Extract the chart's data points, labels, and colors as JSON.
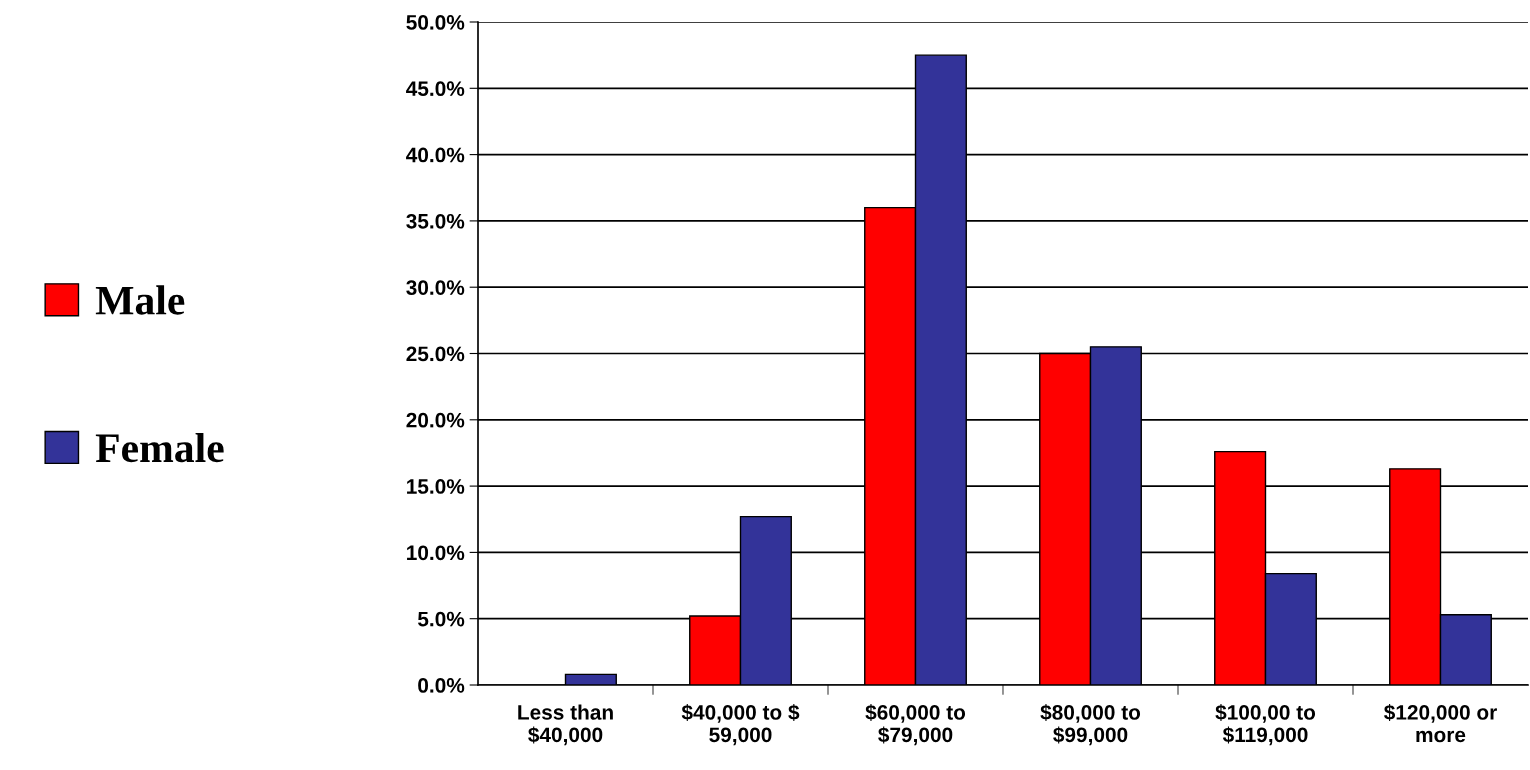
{
  "chart_data": {
    "type": "bar",
    "categories": [
      "Less than\n$40,000",
      "$40,000 to $\n59,000",
      "$60,000 to\n$79,000",
      "$80,000 to\n$99,000",
      "$100,00 to\n$119,000",
      "$120,000 or\nmore"
    ],
    "series": [
      {
        "name": "Male",
        "color": "#ff0000",
        "values": [
          0,
          5.2,
          36.0,
          25.0,
          17.6,
          16.3
        ]
      },
      {
        "name": "Female",
        "color": "#333399",
        "values": [
          0.8,
          12.7,
          47.5,
          25.5,
          8.4,
          5.3
        ]
      }
    ],
    "ylim": [
      0,
      50
    ],
    "yticks": [
      {
        "value": 0,
        "label": "0.0%"
      },
      {
        "value": 5,
        "label": "5.0%"
      },
      {
        "value": 10,
        "label": "10.0%"
      },
      {
        "value": 15,
        "label": "15.0%"
      },
      {
        "value": 20,
        "label": "20.0%"
      },
      {
        "value": 25,
        "label": "25.0%"
      },
      {
        "value": 30,
        "label": "30.0%"
      },
      {
        "value": 35,
        "label": "35.0%"
      },
      {
        "value": 40,
        "label": "40.0%"
      },
      {
        "value": 45,
        "label": "45.0%"
      },
      {
        "value": 50,
        "label": "50.0%"
      }
    ],
    "grid": "y",
    "legend": "left"
  }
}
